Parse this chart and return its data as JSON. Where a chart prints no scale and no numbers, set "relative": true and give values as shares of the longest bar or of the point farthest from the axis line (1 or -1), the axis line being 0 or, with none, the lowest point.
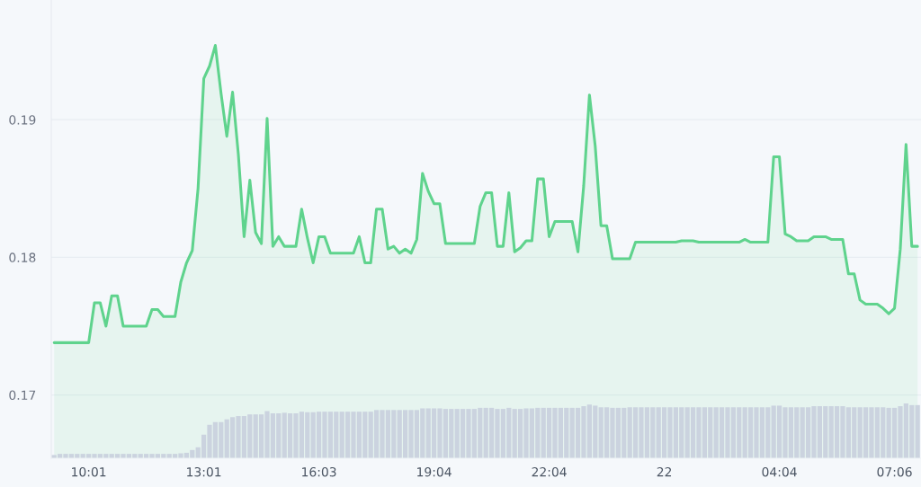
{
  "chart_data": [
    {
      "type": "area",
      "color": "#5fd38d",
      "ylim": [
        0.1654,
        0.1987
      ],
      "yticks": [
        0.17,
        0.18,
        0.19
      ],
      "grid": "y",
      "tick_labels": "y",
      "categories": [
        null,
        null,
        null,
        null,
        null,
        null,
        null,
        null,
        null,
        null,
        null,
        null,
        null,
        null,
        null,
        null,
        null,
        null,
        null,
        null,
        null,
        null,
        null,
        null,
        null,
        null,
        null,
        null,
        null,
        null,
        null,
        null,
        null,
        null,
        null,
        null,
        null,
        null,
        null,
        null,
        null,
        null,
        null,
        null,
        null,
        null,
        null,
        null,
        null,
        null,
        null,
        null,
        null,
        null,
        null,
        null,
        null,
        null,
        null,
        null,
        null,
        null,
        null,
        null,
        null,
        null,
        null,
        null,
        null,
        null,
        null,
        null,
        null,
        null,
        null,
        null,
        null,
        null,
        null,
        null,
        null,
        null,
        null,
        null,
        null,
        null,
        null,
        null,
        null,
        null,
        null,
        null,
        null,
        null,
        null,
        null,
        null,
        null,
        null,
        null,
        null,
        null,
        null,
        null,
        null,
        null,
        null,
        null,
        null,
        null,
        null,
        null,
        null,
        null,
        null,
        null,
        null,
        null,
        null,
        null,
        null,
        null,
        null,
        null,
        null,
        null,
        null,
        null,
        null,
        null,
        null,
        null,
        null,
        null,
        null,
        null,
        null,
        null,
        null,
        null,
        null,
        null,
        null,
        null,
        null,
        null,
        null,
        null,
        null,
        null,
        null
      ],
      "values": [
        0.1738,
        0.1738,
        0.1738,
        0.1738,
        0.1738,
        0.1738,
        0.1738,
        0.1767,
        0.1767,
        0.175,
        0.1772,
        0.1772,
        0.175,
        0.175,
        0.175,
        0.175,
        0.175,
        0.1762,
        0.1762,
        0.1757,
        0.1757,
        0.1757,
        0.1782,
        0.1796,
        0.1805,
        0.185,
        0.193,
        0.1939,
        0.1954,
        0.1919,
        0.1888,
        0.192,
        0.1875,
        0.1815,
        0.1856,
        0.1818,
        0.181,
        0.1901,
        0.1808,
        0.1815,
        0.1808,
        0.1808,
        0.1808,
        0.1835,
        0.1814,
        0.1796,
        0.1815,
        0.1815,
        0.1803,
        0.1803,
        0.1803,
        0.1803,
        0.1803,
        0.1815,
        0.1796,
        0.1796,
        0.1835,
        0.1835,
        0.1806,
        0.1808,
        0.1803,
        0.1806,
        0.1803,
        0.1813,
        0.1861,
        0.1848,
        0.1839,
        0.1839,
        0.181,
        0.181,
        0.181,
        0.181,
        0.181,
        0.181,
        0.1837,
        0.1847,
        0.1847,
        0.1808,
        0.1808,
        0.1847,
        0.1804,
        0.1807,
        0.1812,
        0.1812,
        0.1857,
        0.1857,
        0.1815,
        0.1826,
        0.1826,
        0.1826,
        0.1826,
        0.1804,
        0.1852,
        0.1918,
        0.1881,
        0.1823,
        0.1823,
        0.1799,
        0.1799,
        0.1799,
        0.1799,
        0.1811,
        0.1811,
        0.1811,
        0.1811,
        0.1811,
        0.1811,
        0.1811,
        0.1811,
        0.1812,
        0.1812,
        0.1812,
        0.1811,
        0.1811,
        0.1811,
        0.1811,
        0.1811,
        0.1811,
        0.1811,
        0.1811,
        0.1813,
        0.1811,
        0.1811,
        0.1811,
        0.1811,
        0.1873,
        0.1873,
        0.1817,
        0.1815,
        0.1812,
        0.1812,
        0.1812,
        0.1815,
        0.1815,
        0.1815,
        0.1813,
        0.1813,
        0.1813,
        0.1788,
        0.1788,
        0.1769,
        0.1766,
        0.1766,
        0.1766,
        0.1763,
        0.1759,
        0.1763,
        0.1806,
        0.1882,
        0.1808,
        0.1808
      ]
    },
    {
      "type": "bar",
      "color": "#cbd3df",
      "relative": true,
      "tick_labels": "x",
      "categories": [
        null,
        null,
        null,
        null,
        null,
        null,
        "10:01",
        null,
        null,
        null,
        null,
        null,
        null,
        null,
        null,
        null,
        null,
        null,
        null,
        null,
        null,
        null,
        null,
        null,
        null,
        null,
        "13:01",
        null,
        null,
        null,
        null,
        null,
        null,
        null,
        null,
        null,
        null,
        null,
        null,
        null,
        null,
        null,
        null,
        null,
        null,
        null,
        "16:03",
        null,
        null,
        null,
        null,
        null,
        null,
        null,
        null,
        null,
        null,
        null,
        null,
        null,
        null,
        null,
        null,
        null,
        null,
        null,
        "19:04",
        null,
        null,
        null,
        null,
        null,
        null,
        null,
        null,
        null,
        null,
        null,
        null,
        null,
        null,
        null,
        null,
        null,
        null,
        null,
        "22:04",
        null,
        null,
        null,
        null,
        null,
        null,
        null,
        null,
        null,
        null,
        null,
        null,
        null,
        null,
        null,
        null,
        null,
        null,
        null,
        "22",
        null,
        null,
        null,
        null,
        null,
        null,
        null,
        null,
        null,
        null,
        null,
        null,
        null,
        null,
        null,
        null,
        null,
        null,
        null,
        "04:04",
        null,
        null,
        null,
        null,
        null,
        null,
        null,
        null,
        null,
        null,
        null,
        null,
        null,
        null,
        null,
        null,
        null,
        null,
        null,
        "07:06",
        null,
        null,
        null,
        null
      ],
      "values": [
        0.06,
        0.08,
        0.08,
        0.08,
        0.08,
        0.08,
        0.08,
        0.08,
        0.08,
        0.08,
        0.08,
        0.08,
        0.08,
        0.08,
        0.08,
        0.08,
        0.08,
        0.08,
        0.08,
        0.08,
        0.08,
        0.08,
        0.09,
        0.1,
        0.15,
        0.2,
        0.43,
        0.61,
        0.66,
        0.66,
        0.71,
        0.75,
        0.77,
        0.77,
        0.8,
        0.8,
        0.8,
        0.86,
        0.82,
        0.82,
        0.83,
        0.82,
        0.82,
        0.85,
        0.84,
        0.84,
        0.85,
        0.85,
        0.85,
        0.85,
        0.85,
        0.85,
        0.85,
        0.85,
        0.85,
        0.85,
        0.88,
        0.88,
        0.88,
        0.88,
        0.88,
        0.88,
        0.88,
        0.88,
        0.91,
        0.91,
        0.91,
        0.91,
        0.9,
        0.9,
        0.9,
        0.9,
        0.9,
        0.9,
        0.92,
        0.92,
        0.92,
        0.9,
        0.9,
        0.92,
        0.9,
        0.9,
        0.91,
        0.91,
        0.92,
        0.92,
        0.92,
        0.92,
        0.92,
        0.92,
        0.92,
        0.92,
        0.95,
        0.98,
        0.96,
        0.93,
        0.93,
        0.92,
        0.92,
        0.92,
        0.93,
        0.93,
        0.93,
        0.93,
        0.93,
        0.93,
        0.93,
        0.93,
        0.93,
        0.93,
        0.93,
        0.93,
        0.93,
        0.93,
        0.93,
        0.93,
        0.93,
        0.93,
        0.93,
        0.93,
        0.93,
        0.93,
        0.93,
        0.93,
        0.93,
        0.96,
        0.96,
        0.93,
        0.93,
        0.93,
        0.93,
        0.93,
        0.95,
        0.95,
        0.95,
        0.95,
        0.95,
        0.95,
        0.93,
        0.93,
        0.93,
        0.93,
        0.93,
        0.93,
        0.93,
        0.92,
        0.92,
        0.95,
        1.0,
        0.97,
        0.97
      ]
    }
  ]
}
